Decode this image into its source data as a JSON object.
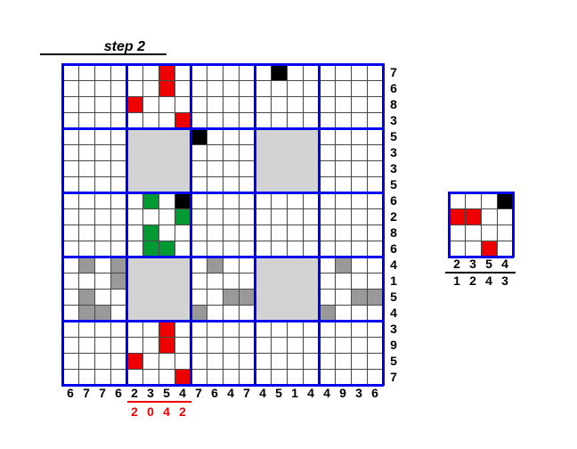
{
  "title": "step 2",
  "colors": {
    "red": "#ee0000",
    "green": "#009934",
    "black": "#000000",
    "gray": "#999999",
    "light_gray": "#d2d2d2",
    "blue": "#0000ee",
    "line": "#474747"
  },
  "big_grid": {
    "cols": 20,
    "rows": 20,
    "block": 4,
    "row_labels": [
      "7",
      "6",
      "8",
      "3",
      "5",
      "3",
      "3",
      "5",
      "6",
      "2",
      "8",
      "6",
      "4",
      "1",
      "5",
      "4",
      "3",
      "9",
      "5",
      "7"
    ],
    "col_labels": [
      "6",
      "7",
      "7",
      "6",
      "2",
      "3",
      "5",
      "4",
      "7",
      "6",
      "4",
      "7",
      "4",
      "5",
      "1",
      "4",
      "4",
      "9",
      "3",
      "6"
    ],
    "red_col_labels": [
      "2",
      "0",
      "4",
      "2"
    ],
    "red_col_start": 4,
    "gray_blocks": [
      {
        "col": 4,
        "row": 4
      },
      {
        "col": 12,
        "row": 4
      },
      {
        "col": 4,
        "row": 12
      },
      {
        "col": 12,
        "row": 12
      }
    ],
    "cells": [
      {
        "col": 6,
        "row": 0,
        "color": "red"
      },
      {
        "col": 13,
        "row": 0,
        "color": "black"
      },
      {
        "col": 6,
        "row": 1,
        "color": "red"
      },
      {
        "col": 4,
        "row": 2,
        "color": "red"
      },
      {
        "col": 7,
        "row": 3,
        "color": "red"
      },
      {
        "col": 8,
        "row": 4,
        "color": "black"
      },
      {
        "col": 5,
        "row": 8,
        "color": "green"
      },
      {
        "col": 7,
        "row": 8,
        "color": "black"
      },
      {
        "col": 7,
        "row": 9,
        "color": "green"
      },
      {
        "col": 5,
        "row": 10,
        "color": "green"
      },
      {
        "col": 5,
        "row": 11,
        "color": "green"
      },
      {
        "col": 6,
        "row": 11,
        "color": "green"
      },
      {
        "col": 1,
        "row": 12,
        "color": "gray"
      },
      {
        "col": 3,
        "row": 12,
        "color": "gray"
      },
      {
        "col": 9,
        "row": 12,
        "color": "gray"
      },
      {
        "col": 17,
        "row": 12,
        "color": "gray"
      },
      {
        "col": 3,
        "row": 13,
        "color": "gray"
      },
      {
        "col": 1,
        "row": 14,
        "color": "gray"
      },
      {
        "col": 10,
        "row": 14,
        "color": "gray"
      },
      {
        "col": 11,
        "row": 14,
        "color": "gray"
      },
      {
        "col": 18,
        "row": 14,
        "color": "gray"
      },
      {
        "col": 19,
        "row": 14,
        "color": "gray"
      },
      {
        "col": 1,
        "row": 15,
        "color": "gray"
      },
      {
        "col": 2,
        "row": 15,
        "color": "gray"
      },
      {
        "col": 8,
        "row": 15,
        "color": "gray"
      },
      {
        "col": 16,
        "row": 15,
        "color": "gray"
      },
      {
        "col": 6,
        "row": 16,
        "color": "red"
      },
      {
        "col": 6,
        "row": 17,
        "color": "red"
      },
      {
        "col": 4,
        "row": 18,
        "color": "red"
      },
      {
        "col": 7,
        "row": 19,
        "color": "red"
      }
    ]
  },
  "small_grid": {
    "cols": 4,
    "rows": 4,
    "block": 4,
    "top_labels": [
      "2",
      "3",
      "5",
      "4"
    ],
    "bottom_labels": [
      "1",
      "2",
      "4",
      "3"
    ],
    "cells": [
      {
        "col": 3,
        "row": 0,
        "color": "black"
      },
      {
        "col": 0,
        "row": 1,
        "color": "red"
      },
      {
        "col": 1,
        "row": 1,
        "color": "red"
      },
      {
        "col": 2,
        "row": 3,
        "color": "red"
      }
    ]
  }
}
